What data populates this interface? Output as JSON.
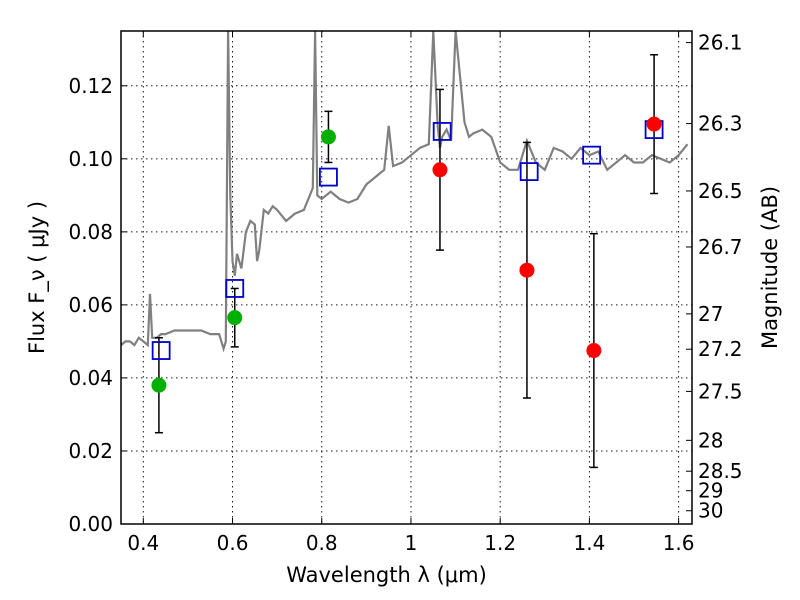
{
  "chart_data": {
    "type": "scatter",
    "xlabel": "Wavelength λ (μm)",
    "ylabel": "Flux F_ν ( μJy )",
    "y2label": "Magnitude (AB)",
    "xlim": [
      0.35,
      1.63
    ],
    "ylim": [
      0.0,
      0.135
    ],
    "x_ticks": [
      0.4,
      0.6,
      0.8,
      1.0,
      1.2,
      1.4,
      1.6
    ],
    "x_tick_labels": [
      "0.4",
      "0.6",
      "0.8",
      "1",
      "1.2",
      "1.4",
      "1.6"
    ],
    "y_ticks": [
      0.0,
      0.02,
      0.04,
      0.06,
      0.08,
      0.1,
      0.12
    ],
    "y_tick_labels": [
      "0.00",
      "0.02",
      "0.04",
      "0.06",
      "0.08",
      "0.10",
      "0.12"
    ],
    "y2_tick_labels": [
      "26.1",
      "26.3",
      "26.5",
      "26.7",
      "27",
      "27.2",
      "27.5",
      "28",
      "28.5",
      "29",
      "30"
    ],
    "grid": true,
    "colors": {
      "spectrum": "#808080",
      "green_points": "#00b000",
      "red_points": "#ff0000",
      "model_squares": "#0000cc",
      "errorbars": "#000000"
    },
    "spectrum": {
      "x": [
        0.35,
        0.36,
        0.37,
        0.38,
        0.39,
        0.4,
        0.41,
        0.415,
        0.42,
        0.43,
        0.44,
        0.45,
        0.47,
        0.5,
        0.53,
        0.55,
        0.57,
        0.58,
        0.585,
        0.59,
        0.595,
        0.6,
        0.605,
        0.61,
        0.62,
        0.63,
        0.64,
        0.65,
        0.655,
        0.66,
        0.67,
        0.68,
        0.69,
        0.7,
        0.72,
        0.74,
        0.76,
        0.78,
        0.785,
        0.79,
        0.8,
        0.82,
        0.84,
        0.86,
        0.88,
        0.9,
        0.92,
        0.94,
        0.95,
        0.96,
        0.98,
        1.0,
        1.02,
        1.04,
        1.05,
        1.06,
        1.065,
        1.07,
        1.08,
        1.09,
        1.1,
        1.12,
        1.13,
        1.14,
        1.16,
        1.18,
        1.2,
        1.22,
        1.24,
        1.26,
        1.28,
        1.3,
        1.32,
        1.34,
        1.36,
        1.38,
        1.4,
        1.42,
        1.44,
        1.46,
        1.48,
        1.5,
        1.52,
        1.54,
        1.56,
        1.58,
        1.6,
        1.62
      ],
      "y": [
        0.049,
        0.05,
        0.05,
        0.049,
        0.051,
        0.05,
        0.049,
        0.063,
        0.051,
        0.051,
        0.052,
        0.052,
        0.053,
        0.053,
        0.053,
        0.052,
        0.052,
        0.048,
        0.05,
        0.135,
        0.09,
        0.072,
        0.068,
        0.074,
        0.07,
        0.08,
        0.083,
        0.082,
        0.072,
        0.075,
        0.086,
        0.085,
        0.087,
        0.086,
        0.083,
        0.085,
        0.086,
        0.092,
        0.135,
        0.09,
        0.089,
        0.091,
        0.089,
        0.088,
        0.089,
        0.093,
        0.095,
        0.097,
        0.109,
        0.098,
        0.099,
        0.101,
        0.103,
        0.104,
        0.135,
        0.109,
        0.103,
        0.106,
        0.108,
        0.105,
        0.135,
        0.11,
        0.106,
        0.107,
        0.108,
        0.106,
        0.099,
        0.097,
        0.097,
        0.105,
        0.099,
        0.097,
        0.103,
        0.102,
        0.1,
        0.103,
        0.101,
        0.102,
        0.097,
        0.099,
        0.101,
        0.099,
        0.099,
        0.101,
        0.1,
        0.099,
        0.101,
        0.104
      ]
    },
    "green_points": {
      "x": [
        0.435,
        0.605,
        0.815
      ],
      "y": [
        0.038,
        0.0565,
        0.106
      ],
      "err_low": [
        0.013,
        0.008,
        0.007
      ],
      "err_high": [
        0.013,
        0.008,
        0.007
      ]
    },
    "red_points": {
      "x": [
        1.065,
        1.26,
        1.41,
        1.545
      ],
      "y": [
        0.097,
        0.0695,
        0.0475,
        0.1095
      ],
      "err_low": [
        0.022,
        0.035,
        0.032,
        0.019
      ],
      "err_high": [
        0.022,
        0.035,
        0.032,
        0.019
      ]
    },
    "model_squares": {
      "x": [
        0.44,
        0.605,
        0.815,
        1.07,
        1.265,
        1.405,
        1.545
      ],
      "y": [
        0.0475,
        0.0645,
        0.095,
        0.1075,
        0.0965,
        0.101,
        0.108
      ]
    }
  }
}
